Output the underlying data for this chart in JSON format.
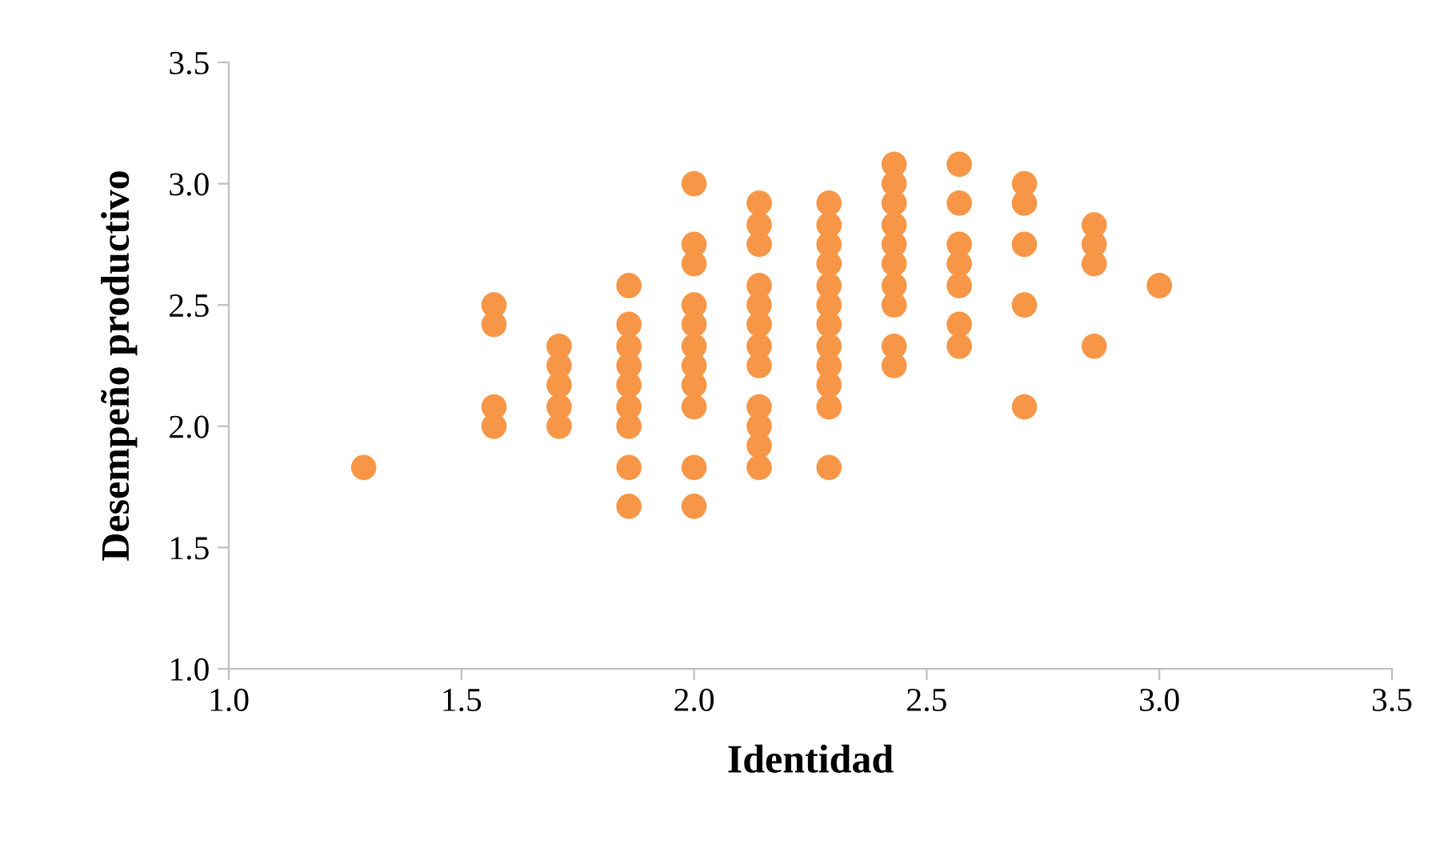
{
  "chart_data": {
    "type": "scatter",
    "xlabel": "Identidad",
    "ylabel": "Desempeño productivo",
    "x": [
      1.29,
      1.57,
      1.57,
      1.57,
      1.57,
      1.71,
      1.71,
      1.71,
      1.71,
      1.71,
      1.86,
      1.86,
      1.86,
      1.86,
      1.86,
      1.86,
      1.86,
      1.86,
      1.86,
      2.0,
      2.0,
      2.0,
      2.0,
      2.0,
      2.0,
      2.0,
      2.0,
      2.0,
      2.0,
      2.0,
      2.14,
      2.14,
      2.14,
      2.14,
      2.14,
      2.14,
      2.14,
      2.14,
      2.14,
      2.14,
      2.14,
      2.14,
      2.29,
      2.29,
      2.29,
      2.29,
      2.29,
      2.29,
      2.29,
      2.29,
      2.29,
      2.29,
      2.29,
      2.29,
      2.43,
      2.43,
      2.43,
      2.43,
      2.43,
      2.43,
      2.43,
      2.43,
      2.43,
      2.43,
      2.57,
      2.57,
      2.57,
      2.57,
      2.57,
      2.57,
      2.57,
      2.71,
      2.71,
      2.71,
      2.71,
      2.71,
      2.86,
      2.86,
      2.86,
      2.86,
      3.0
    ],
    "values": [
      1.83,
      2.5,
      2.42,
      2.08,
      2.0,
      2.33,
      2.25,
      2.17,
      2.08,
      2.0,
      2.58,
      2.42,
      2.33,
      2.25,
      2.17,
      2.08,
      2.0,
      1.83,
      1.67,
      3.0,
      2.75,
      2.67,
      2.5,
      2.42,
      2.33,
      2.25,
      2.17,
      2.08,
      1.83,
      1.67,
      2.92,
      2.83,
      2.75,
      2.58,
      2.5,
      2.42,
      2.33,
      2.25,
      2.08,
      2.0,
      1.92,
      1.83,
      2.92,
      2.83,
      2.75,
      2.67,
      2.58,
      2.5,
      2.42,
      2.33,
      2.25,
      2.17,
      2.08,
      1.83,
      3.08,
      3.0,
      2.92,
      2.83,
      2.75,
      2.67,
      2.58,
      2.5,
      2.33,
      2.25,
      3.08,
      2.92,
      2.75,
      2.67,
      2.58,
      2.42,
      2.33,
      3.0,
      2.92,
      2.75,
      2.5,
      2.08,
      2.83,
      2.75,
      2.67,
      2.33,
      2.58
    ],
    "color": "#f79646",
    "marker": "circle",
    "xlim": [
      1.0,
      3.5
    ],
    "xticks": [
      {
        "value": 1.0,
        "label": "1.0"
      },
      {
        "value": 1.5,
        "label": "1.5"
      },
      {
        "value": 2.0,
        "label": "2.0"
      },
      {
        "value": 2.5,
        "label": "2.5"
      },
      {
        "value": 3.0,
        "label": "3.0"
      },
      {
        "value": 3.5,
        "label": "3.5"
      }
    ],
    "ylim": [
      1.0,
      3.5
    ],
    "yticks": [
      {
        "value": 1.0,
        "label": "1.0"
      },
      {
        "value": 1.5,
        "label": "1.5"
      },
      {
        "value": 2.0,
        "label": "2.0"
      },
      {
        "value": 2.5,
        "label": "2.5"
      },
      {
        "value": 3.0,
        "label": "3.0"
      },
      {
        "value": 3.5,
        "label": "3.5"
      }
    ],
    "grid": false
  }
}
